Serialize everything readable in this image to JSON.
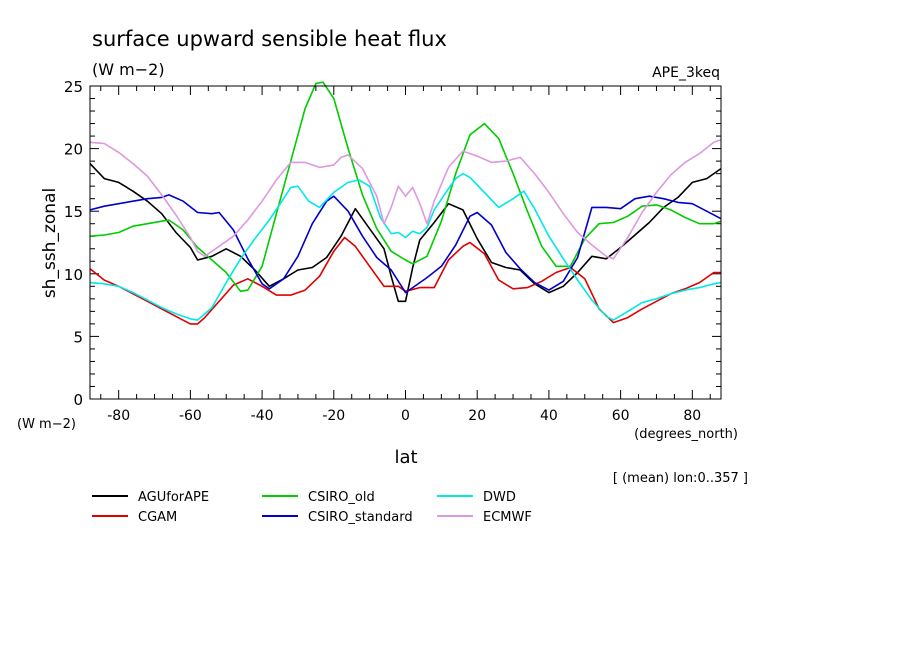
{
  "chart_data": {
    "type": "line",
    "title": "surface upward sensible heat flux",
    "units": "(W m−2)",
    "experiment": "APE_3keq",
    "ylabel": "sh_ssh_zonal",
    "yunits": "(W m−2)",
    "xlabel": "lat",
    "xunits": "(degrees_north)",
    "note": "[ (mean) lon:0..357 ]",
    "xlim": [
      -88,
      88
    ],
    "ylim": [
      0,
      25
    ],
    "xticks": [
      "-80",
      "-60",
      "-40",
      "-20",
      "0",
      "20",
      "40",
      "60",
      "80"
    ],
    "yticks": [
      "0",
      "5",
      "10",
      "15",
      "20",
      "25"
    ],
    "series": [
      {
        "name": "AGUforAPE",
        "color": "#000000",
        "points": [
          [
            -88,
            18.8
          ],
          [
            -84,
            17.6
          ],
          [
            -80,
            17.3
          ],
          [
            -76,
            16.6
          ],
          [
            -72,
            15.8
          ],
          [
            -68,
            14.8
          ],
          [
            -64,
            13.3
          ],
          [
            -60,
            12.1
          ],
          [
            -58,
            11.1
          ],
          [
            -54,
            11.4
          ],
          [
            -50,
            12.0
          ],
          [
            -46,
            11.4
          ],
          [
            -42,
            10.3
          ],
          [
            -38,
            9.0
          ],
          [
            -34,
            9.6
          ],
          [
            -30,
            10.3
          ],
          [
            -26,
            10.5
          ],
          [
            -22,
            11.3
          ],
          [
            -18,
            13.0
          ],
          [
            -14,
            15.2
          ],
          [
            -10,
            13.6
          ],
          [
            -6,
            12.0
          ],
          [
            -4,
            9.8
          ],
          [
            -2,
            7.8
          ],
          [
            0,
            7.8
          ],
          [
            2,
            10.5
          ],
          [
            4,
            12.7
          ],
          [
            8,
            14.1
          ],
          [
            12,
            15.6
          ],
          [
            16,
            15.1
          ],
          [
            20,
            12.8
          ],
          [
            24,
            10.9
          ],
          [
            28,
            10.5
          ],
          [
            32,
            10.3
          ],
          [
            36,
            9.2
          ],
          [
            40,
            8.5
          ],
          [
            44,
            9.0
          ],
          [
            48,
            10.1
          ],
          [
            52,
            11.4
          ],
          [
            56,
            11.2
          ],
          [
            60,
            12.1
          ],
          [
            64,
            13.1
          ],
          [
            68,
            14.1
          ],
          [
            72,
            15.3
          ],
          [
            76,
            16.1
          ],
          [
            80,
            17.3
          ],
          [
            84,
            17.6
          ],
          [
            88,
            18.4
          ]
        ]
      },
      {
        "name": "CGAM",
        "color": "#e00000",
        "points": [
          [
            -88,
            10.4
          ],
          [
            -84,
            9.5
          ],
          [
            -80,
            9.0
          ],
          [
            -76,
            8.4
          ],
          [
            -72,
            7.8
          ],
          [
            -68,
            7.2
          ],
          [
            -64,
            6.6
          ],
          [
            -60,
            6.0
          ],
          [
            -58,
            6.0
          ],
          [
            -56,
            6.5
          ],
          [
            -52,
            7.8
          ],
          [
            -48,
            9.1
          ],
          [
            -44,
            9.6
          ],
          [
            -40,
            9.0
          ],
          [
            -36,
            8.3
          ],
          [
            -32,
            8.3
          ],
          [
            -28,
            8.7
          ],
          [
            -24,
            9.8
          ],
          [
            -20,
            11.8
          ],
          [
            -17,
            12.9
          ],
          [
            -14,
            12.2
          ],
          [
            -10,
            10.6
          ],
          [
            -6,
            9.0
          ],
          [
            -2,
            9.0
          ],
          [
            0,
            8.6
          ],
          [
            4,
            8.9
          ],
          [
            8,
            8.9
          ],
          [
            12,
            11.1
          ],
          [
            16,
            12.2
          ],
          [
            18,
            12.5
          ],
          [
            22,
            11.6
          ],
          [
            26,
            9.5
          ],
          [
            30,
            8.8
          ],
          [
            34,
            8.9
          ],
          [
            38,
            9.4
          ],
          [
            42,
            10.1
          ],
          [
            46,
            10.5
          ],
          [
            50,
            9.6
          ],
          [
            54,
            7.2
          ],
          [
            58,
            6.1
          ],
          [
            62,
            6.5
          ],
          [
            66,
            7.2
          ],
          [
            70,
            7.8
          ],
          [
            74,
            8.4
          ],
          [
            78,
            8.8
          ],
          [
            82,
            9.3
          ],
          [
            86,
            10.1
          ],
          [
            88,
            10.1
          ]
        ]
      },
      {
        "name": "CSIRO_old",
        "color": "#00cc00",
        "points": [
          [
            -88,
            13.0
          ],
          [
            -84,
            13.1
          ],
          [
            -80,
            13.3
          ],
          [
            -76,
            13.8
          ],
          [
            -72,
            14.0
          ],
          [
            -68,
            14.2
          ],
          [
            -66,
            14.3
          ],
          [
            -62,
            13.5
          ],
          [
            -58,
            12.1
          ],
          [
            -54,
            11.1
          ],
          [
            -50,
            10.1
          ],
          [
            -46,
            8.6
          ],
          [
            -44,
            8.7
          ],
          [
            -40,
            10.6
          ],
          [
            -36,
            14.8
          ],
          [
            -32,
            19.0
          ],
          [
            -28,
            23.2
          ],
          [
            -25,
            25.2
          ],
          [
            -23,
            25.3
          ],
          [
            -20,
            24.0
          ],
          [
            -16,
            20.0
          ],
          [
            -12,
            16.3
          ],
          [
            -8,
            13.6
          ],
          [
            -4,
            11.8
          ],
          [
            0,
            11.1
          ],
          [
            2,
            10.8
          ],
          [
            6,
            11.4
          ],
          [
            10,
            14.2
          ],
          [
            14,
            18.0
          ],
          [
            18,
            21.1
          ],
          [
            22,
            22.0
          ],
          [
            26,
            20.8
          ],
          [
            30,
            18.0
          ],
          [
            34,
            15.0
          ],
          [
            38,
            12.2
          ],
          [
            42,
            10.6
          ],
          [
            46,
            10.6
          ],
          [
            50,
            12.8
          ],
          [
            54,
            14.0
          ],
          [
            58,
            14.1
          ],
          [
            62,
            14.6
          ],
          [
            66,
            15.4
          ],
          [
            70,
            15.5
          ],
          [
            74,
            15.1
          ],
          [
            78,
            14.5
          ],
          [
            82,
            14.0
          ],
          [
            86,
            14.0
          ],
          [
            88,
            14.2
          ]
        ]
      },
      {
        "name": "CSIRO_standard",
        "color": "#0000cc",
        "points": [
          [
            -88,
            15.1
          ],
          [
            -84,
            15.4
          ],
          [
            -80,
            15.6
          ],
          [
            -76,
            15.8
          ],
          [
            -72,
            16.0
          ],
          [
            -68,
            16.1
          ],
          [
            -66,
            16.3
          ],
          [
            -62,
            15.8
          ],
          [
            -58,
            14.9
          ],
          [
            -54,
            14.8
          ],
          [
            -52,
            14.9
          ],
          [
            -48,
            13.5
          ],
          [
            -44,
            11.2
          ],
          [
            -40,
            9.2
          ],
          [
            -38,
            8.8
          ],
          [
            -34,
            9.6
          ],
          [
            -30,
            11.4
          ],
          [
            -26,
            14.0
          ],
          [
            -22,
            15.8
          ],
          [
            -20,
            16.2
          ],
          [
            -16,
            15.0
          ],
          [
            -12,
            13.0
          ],
          [
            -8,
            11.3
          ],
          [
            -4,
            10.3
          ],
          [
            0,
            8.5
          ],
          [
            2,
            8.9
          ],
          [
            6,
            9.7
          ],
          [
            10,
            10.6
          ],
          [
            14,
            12.3
          ],
          [
            18,
            14.6
          ],
          [
            20,
            14.9
          ],
          [
            24,
            13.9
          ],
          [
            28,
            11.7
          ],
          [
            32,
            10.4
          ],
          [
            36,
            9.3
          ],
          [
            40,
            8.7
          ],
          [
            44,
            9.4
          ],
          [
            48,
            11.3
          ],
          [
            52,
            15.3
          ],
          [
            56,
            15.3
          ],
          [
            60,
            15.2
          ],
          [
            64,
            16.0
          ],
          [
            68,
            16.2
          ],
          [
            72,
            16.0
          ],
          [
            76,
            15.7
          ],
          [
            80,
            15.6
          ],
          [
            84,
            15.0
          ],
          [
            88,
            14.4
          ]
        ]
      },
      {
        "name": "DWD",
        "color": "#00e8e8",
        "points": [
          [
            -88,
            9.3
          ],
          [
            -84,
            9.2
          ],
          [
            -80,
            9.0
          ],
          [
            -76,
            8.5
          ],
          [
            -72,
            7.9
          ],
          [
            -68,
            7.3
          ],
          [
            -64,
            6.8
          ],
          [
            -60,
            6.4
          ],
          [
            -58,
            6.3
          ],
          [
            -54,
            7.3
          ],
          [
            -50,
            9.3
          ],
          [
            -46,
            11.2
          ],
          [
            -42,
            12.8
          ],
          [
            -38,
            14.3
          ],
          [
            -34,
            16.0
          ],
          [
            -32,
            16.9
          ],
          [
            -30,
            17.0
          ],
          [
            -27,
            15.8
          ],
          [
            -24,
            15.3
          ],
          [
            -20,
            16.5
          ],
          [
            -16,
            17.3
          ],
          [
            -13,
            17.5
          ],
          [
            -10,
            17.0
          ],
          [
            -7,
            14.5
          ],
          [
            -4,
            13.2
          ],
          [
            -2,
            13.3
          ],
          [
            0,
            12.9
          ],
          [
            2,
            13.4
          ],
          [
            4,
            13.2
          ],
          [
            6,
            13.7
          ],
          [
            8,
            15.1
          ],
          [
            12,
            16.8
          ],
          [
            14,
            17.6
          ],
          [
            16,
            18.0
          ],
          [
            18,
            17.7
          ],
          [
            20,
            17.1
          ],
          [
            23,
            16.2
          ],
          [
            26,
            15.3
          ],
          [
            30,
            16.0
          ],
          [
            33,
            16.6
          ],
          [
            36,
            15.2
          ],
          [
            40,
            13.0
          ],
          [
            44,
            11.2
          ],
          [
            48,
            9.5
          ],
          [
            52,
            7.9
          ],
          [
            56,
            6.6
          ],
          [
            58,
            6.3
          ],
          [
            62,
            7.0
          ],
          [
            66,
            7.7
          ],
          [
            70,
            8.0
          ],
          [
            74,
            8.4
          ],
          [
            78,
            8.7
          ],
          [
            82,
            8.9
          ],
          [
            86,
            9.2
          ],
          [
            88,
            9.3
          ]
        ]
      },
      {
        "name": "ECMWF",
        "color": "#dd99dd",
        "points": [
          [
            -88,
            20.5
          ],
          [
            -84,
            20.4
          ],
          [
            -80,
            19.7
          ],
          [
            -76,
            18.8
          ],
          [
            -72,
            17.8
          ],
          [
            -68,
            16.3
          ],
          [
            -64,
            14.7
          ],
          [
            -60,
            12.9
          ],
          [
            -58,
            11.8
          ],
          [
            -56,
            11.4
          ],
          [
            -52,
            12.2
          ],
          [
            -48,
            13.0
          ],
          [
            -44,
            14.3
          ],
          [
            -40,
            15.8
          ],
          [
            -36,
            17.5
          ],
          [
            -32,
            18.9
          ],
          [
            -28,
            18.9
          ],
          [
            -24,
            18.5
          ],
          [
            -20,
            18.7
          ],
          [
            -18,
            19.3
          ],
          [
            -16,
            19.5
          ],
          [
            -12,
            18.4
          ],
          [
            -8,
            16.2
          ],
          [
            -6,
            14.0
          ],
          [
            -4,
            15.3
          ],
          [
            -2,
            17.0
          ],
          [
            0,
            16.2
          ],
          [
            2,
            16.9
          ],
          [
            4,
            15.6
          ],
          [
            6,
            14.0
          ],
          [
            8,
            15.8
          ],
          [
            12,
            18.5
          ],
          [
            16,
            19.8
          ],
          [
            20,
            19.4
          ],
          [
            24,
            18.9
          ],
          [
            28,
            19.0
          ],
          [
            32,
            19.3
          ],
          [
            36,
            18.0
          ],
          [
            40,
            16.5
          ],
          [
            44,
            14.8
          ],
          [
            48,
            13.3
          ],
          [
            52,
            12.3
          ],
          [
            56,
            11.4
          ],
          [
            58,
            11.2
          ],
          [
            62,
            12.9
          ],
          [
            66,
            14.9
          ],
          [
            70,
            16.5
          ],
          [
            74,
            17.9
          ],
          [
            78,
            18.9
          ],
          [
            82,
            19.6
          ],
          [
            86,
            20.5
          ],
          [
            88,
            20.7
          ]
        ]
      }
    ]
  }
}
